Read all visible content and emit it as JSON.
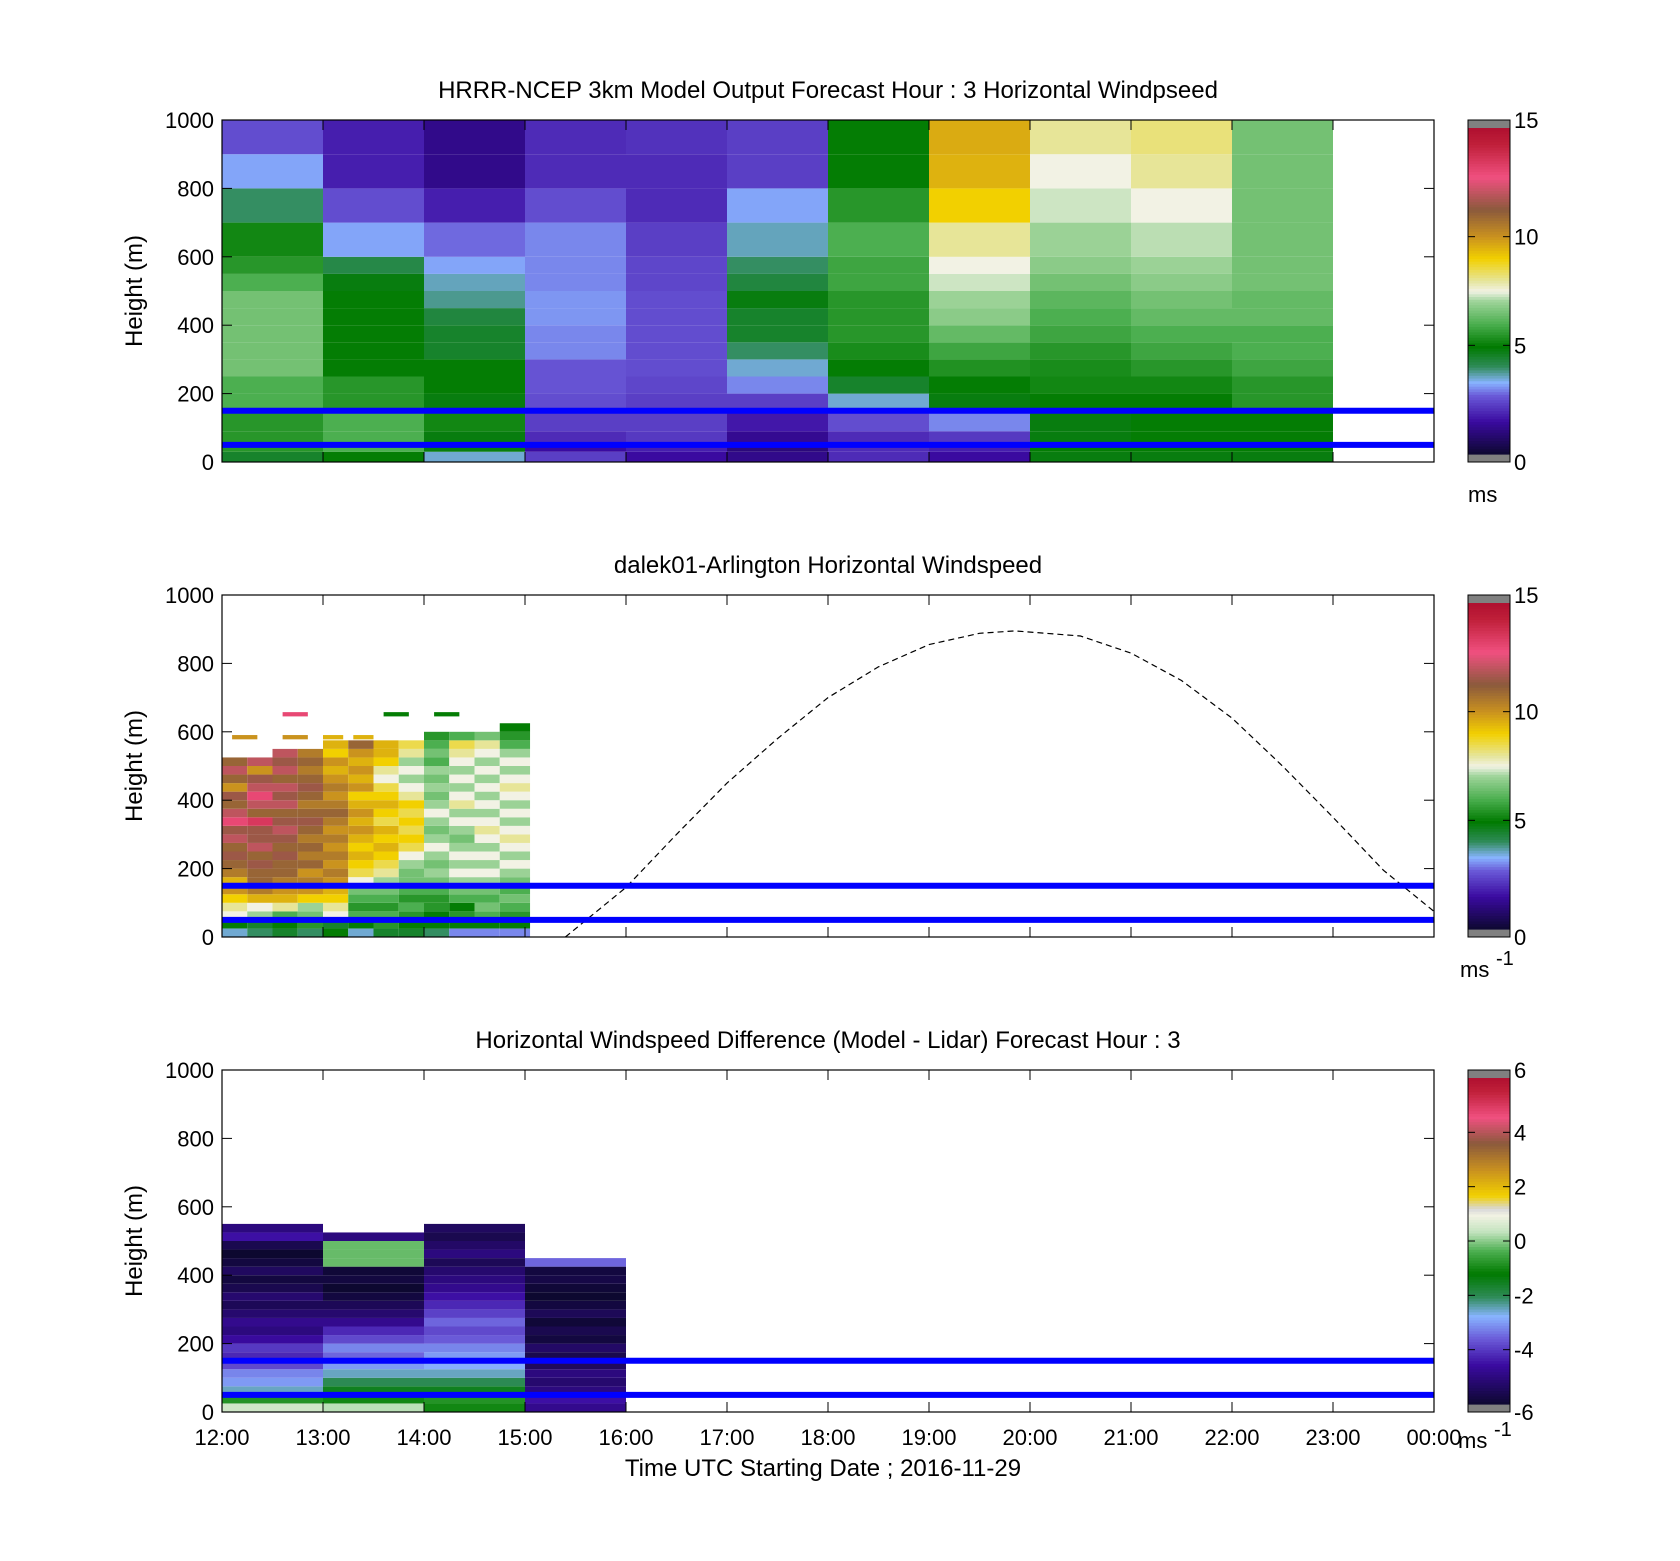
{
  "colors": {
    "hub_line": "#0000ff",
    "envelope": "#000000",
    "speed_stops": [
      [
        0.0,
        "#0d0830"
      ],
      [
        0.1,
        "#3a0aa0"
      ],
      [
        0.18,
        "#6a5ad8"
      ],
      [
        0.22,
        "#88b4ff"
      ],
      [
        0.27,
        "#2e8b57"
      ],
      [
        0.33,
        "#007a00"
      ],
      [
        0.4,
        "#4caf50"
      ],
      [
        0.47,
        "#9fd49a"
      ],
      [
        0.5,
        "#f2f2e4"
      ],
      [
        0.53,
        "#e6e6a0"
      ],
      [
        0.6,
        "#f2d000"
      ],
      [
        0.67,
        "#c89020"
      ],
      [
        0.75,
        "#8b5a3c"
      ],
      [
        0.85,
        "#f05080"
      ],
      [
        0.95,
        "#c0203a"
      ],
      [
        1.0,
        "#b01030"
      ]
    ],
    "diff_stops": [
      [
        0.0,
        "#0d0830"
      ],
      [
        0.12,
        "#3a0aa0"
      ],
      [
        0.2,
        "#6a5ad8"
      ],
      [
        0.27,
        "#88b4ff"
      ],
      [
        0.33,
        "#2e8b57"
      ],
      [
        0.4,
        "#007a00"
      ],
      [
        0.47,
        "#4caf50"
      ],
      [
        0.53,
        "#c4e4c0"
      ],
      [
        0.58,
        "#f2f2e4"
      ],
      [
        0.6,
        "#d8d8d8"
      ],
      [
        0.64,
        "#f2d000"
      ],
      [
        0.72,
        "#c89020"
      ],
      [
        0.8,
        "#8b5a3c"
      ],
      [
        0.88,
        "#f05080"
      ],
      [
        0.96,
        "#c0203a"
      ],
      [
        1.0,
        "#b01030"
      ]
    ]
  },
  "chart_data": [
    {
      "type": "heatmap",
      "title": "HRRR-NCEP 3km Model Output   Forecast Hour : 3 Horizontal Windpseed",
      "xlabel": "",
      "ylabel": "Height (m)",
      "ylim": [
        0,
        1000
      ],
      "yticks": [
        "0",
        "200",
        "400",
        "600",
        "800",
        "1000"
      ],
      "xlim": [
        12,
        24
      ],
      "colorbar": {
        "ticks": [
          "0",
          "5",
          "10",
          "15"
        ],
        "range": [
          0,
          15
        ],
        "unit": "ms",
        "unit_sup": ""
      },
      "hub_heights": [
        150,
        50
      ],
      "heights": [
        0,
        30,
        50,
        90,
        150,
        200,
        250,
        300,
        350,
        400,
        450,
        500,
        550,
        600,
        700,
        800,
        900,
        1000
      ],
      "columns": [
        {
          "t0": 12,
          "t1": 13,
          "values": [
            4.5,
            5.5,
            5.5,
            5.5,
            6.0,
            6.0,
            6.5,
            6.5,
            6.5,
            6.5,
            6.5,
            6.0,
            5.5,
            5.2,
            4.0,
            3.2,
            2.5
          ]
        },
        {
          "t0": 13,
          "t1": 14,
          "values": [
            5.0,
            6.0,
            6.0,
            6.0,
            5.5,
            5.5,
            5.0,
            5.0,
            5.0,
            5.0,
            5.0,
            4.8,
            4.2,
            3.2,
            2.5,
            1.8,
            1.8
          ]
        },
        {
          "t0": 14,
          "t1": 15,
          "values": [
            3.5,
            4.8,
            4.8,
            5.2,
            4.8,
            5.0,
            5.0,
            4.5,
            4.5,
            4.3,
            3.8,
            3.6,
            3.2,
            2.8,
            1.8,
            1.2,
            1.2
          ]
        },
        {
          "t0": 15,
          "t1": 16,
          "values": [
            2.3,
            1.5,
            2.0,
            2.3,
            2.5,
            2.6,
            2.6,
            3.0,
            3.0,
            3.1,
            3.1,
            3.0,
            3.0,
            3.0,
            2.5,
            2.0,
            2.0
          ]
        },
        {
          "t0": 16,
          "t1": 17,
          "values": [
            1.5,
            1.8,
            2.2,
            2.3,
            2.3,
            2.4,
            2.5,
            2.5,
            2.5,
            2.5,
            2.5,
            2.4,
            2.4,
            2.3,
            2.0,
            2.0,
            2.1
          ]
        },
        {
          "t0": 17,
          "t1": 18,
          "values": [
            1.2,
            1.0,
            1.3,
            1.7,
            2.3,
            3.0,
            3.5,
            4.0,
            4.5,
            4.5,
            4.8,
            4.3,
            4.0,
            3.6,
            3.2,
            2.3,
            2.3
          ]
        },
        {
          "t0": 18,
          "t1": 19,
          "values": [
            2.0,
            2.0,
            2.0,
            2.5,
            3.5,
            4.5,
            5.0,
            5.3,
            5.5,
            5.5,
            5.5,
            5.8,
            5.8,
            6.0,
            5.5,
            5.0,
            5.0
          ]
        },
        {
          "t0": 19,
          "t1": 20,
          "values": [
            1.5,
            1.8,
            2.2,
            3.0,
            4.8,
            5.0,
            5.4,
            5.8,
            6.3,
            6.8,
            7.0,
            7.3,
            7.5,
            8.0,
            9.0,
            9.5,
            9.6
          ]
        },
        {
          "t0": 20,
          "t1": 21,
          "values": [
            4.8,
            5.0,
            4.8,
            4.8,
            5.0,
            5.2,
            5.3,
            5.5,
            5.8,
            6.0,
            6.2,
            6.5,
            6.8,
            7.0,
            7.3,
            7.5,
            8.0
          ]
        },
        {
          "t0": 21,
          "t1": 22,
          "values": [
            4.8,
            5.0,
            5.0,
            5.0,
            5.0,
            5.2,
            5.5,
            5.8,
            6.0,
            6.3,
            6.5,
            6.8,
            7.0,
            7.2,
            7.5,
            8.0,
            8.2
          ]
        },
        {
          "t0": 22,
          "t1": 23,
          "values": [
            4.8,
            5.0,
            5.0,
            5.0,
            5.5,
            5.5,
            5.8,
            6.0,
            6.0,
            6.3,
            6.3,
            6.5,
            6.5,
            6.5,
            6.5,
            6.5,
            6.5
          ]
        }
      ]
    },
    {
      "type": "heatmap",
      "title": "dalek01-Arlington  Horizontal Windspeed",
      "xlabel": "",
      "ylabel": "Height (m)",
      "ylim": [
        0,
        1000
      ],
      "yticks": [
        "0",
        "200",
        "400",
        "600",
        "800",
        "1000"
      ],
      "xlim": [
        12,
        24
      ],
      "colorbar": {
        "ticks": [
          "0",
          "5",
          "10",
          "15"
        ],
        "range": [
          0,
          15
        ],
        "unit": "ms",
        "unit_sup": "-1"
      },
      "hub_heights": [
        150,
        50
      ],
      "envelope": {
        "t": [
          15.4,
          16,
          16.5,
          17,
          17.5,
          18,
          18.5,
          19,
          19.5,
          19.85,
          20.5,
          21,
          21.5,
          22,
          22.5,
          23,
          23.5,
          24
        ],
        "h": [
          0,
          145,
          300,
          450,
          580,
          700,
          790,
          855,
          888,
          895,
          880,
          830,
          750,
          640,
          500,
          350,
          195,
          75
        ]
      },
      "bin_height": 25,
      "columns": [
        {
          "t0": 12.0,
          "t1": 12.25,
          "values": [
            3.5,
            5.0,
            7.5,
            8.0,
            9.0,
            10.0,
            9.5,
            10.5,
            11.0,
            11.5,
            11.0,
            12.0,
            11.5,
            13.0,
            12.0,
            11.0,
            11.5,
            10.0,
            11.0,
            12.0,
            11.0
          ]
        },
        {
          "t0": 12.25,
          "t1": 12.5,
          "values": [
            4.0,
            4.5,
            7.0,
            7.5,
            9.5,
            10.5,
            11.0,
            11.0,
            11.5,
            11.0,
            12.0,
            11.5,
            11.5,
            13.5,
            11.0,
            12.0,
            13.0,
            12.0,
            11.5,
            10.0,
            12.0
          ]
        },
        {
          "t0": 12.5,
          "t1": 12.75,
          "values": [
            4.5,
            5.0,
            6.0,
            8.0,
            9.5,
            10.0,
            10.5,
            11.0,
            11.0,
            11.5,
            11.0,
            11.5,
            12.0,
            11.5,
            11.0,
            12.0,
            11.5,
            12.0,
            11.0,
            12.0,
            11.5,
            12.0
          ]
        },
        {
          "t0": 12.75,
          "t1": 13.0,
          "values": [
            4.0,
            5.5,
            6.5,
            7.0,
            9.0,
            10.0,
            10.5,
            10.0,
            11.0,
            10.5,
            11.0,
            10.5,
            11.0,
            11.5,
            11.0,
            10.5,
            11.0,
            11.5,
            11.0,
            10.5,
            11.0,
            10.5
          ]
        },
        {
          "t0": 13.0,
          "t1": 13.25,
          "values": [
            5.0,
            4.5,
            7.5,
            8.0,
            9.0,
            9.5,
            10.0,
            10.5,
            10.0,
            10.5,
            10.0,
            10.5,
            10.0,
            10.5,
            11.0,
            10.5,
            10.0,
            10.5,
            10.0,
            9.5,
            10.0,
            9.0,
            9.5
          ]
        },
        {
          "t0": 13.25,
          "t1": 13.5,
          "values": [
            3.5,
            5.0,
            6.0,
            5.5,
            6.0,
            6.5,
            7.5,
            8.5,
            9.0,
            9.5,
            9.0,
            9.5,
            10.0,
            9.5,
            10.0,
            9.5,
            9.0,
            10.0,
            9.5,
            10.0,
            9.5,
            10.0,
            11.0
          ]
        },
        {
          "t0": 13.5,
          "t1": 13.75,
          "values": [
            4.5,
            5.5,
            6.0,
            5.5,
            6.0,
            6.5,
            7.0,
            8.0,
            8.5,
            9.0,
            9.5,
            9.0,
            9.5,
            8.5,
            9.0,
            9.5,
            9.0,
            8.5,
            7.5,
            8.0,
            9.0,
            9.5,
            9.5
          ]
        },
        {
          "t0": 13.75,
          "t1": 14.0,
          "values": [
            4.5,
            5.0,
            5.5,
            6.0,
            5.5,
            6.0,
            6.5,
            6.5,
            7.0,
            7.5,
            8.5,
            9.0,
            8.5,
            9.0,
            8.5,
            9.0,
            8.0,
            7.5,
            7.0,
            7.5,
            7.0,
            8.0,
            8.5
          ]
        },
        {
          "t0": 14.0,
          "t1": 14.25,
          "values": [
            4.0,
            5.0,
            5.0,
            5.5,
            5.5,
            6.0,
            6.5,
            7.0,
            6.5,
            7.0,
            7.5,
            7.0,
            6.5,
            7.0,
            7.5,
            7.0,
            6.5,
            7.0,
            6.5,
            7.0,
            6.0,
            6.5,
            6.0,
            5.5
          ]
        },
        {
          "t0": 14.25,
          "t1": 14.5,
          "values": [
            3.0,
            5.0,
            5.5,
            5.0,
            6.0,
            6.5,
            7.0,
            7.5,
            7.0,
            7.5,
            7.0,
            6.5,
            7.0,
            7.5,
            7.0,
            8.0,
            7.5,
            7.0,
            7.5,
            7.0,
            7.5,
            8.0,
            8.5,
            6.0
          ]
        },
        {
          "t0": 14.5,
          "t1": 14.75,
          "values": [
            3.0,
            5.0,
            6.0,
            6.5,
            6.0,
            6.5,
            7.0,
            7.5,
            7.0,
            7.5,
            7.0,
            7.5,
            8.0,
            7.5,
            7.0,
            7.5,
            7.0,
            7.5,
            7.0,
            7.5,
            7.0,
            7.5,
            8.0,
            6.5
          ]
        },
        {
          "t0": 14.75,
          "t1": 15.05,
          "values": [
            3.0,
            5.0,
            5.5,
            6.0,
            6.5,
            6.0,
            6.5,
            7.0,
            7.5,
            7.0,
            7.5,
            8.0,
            7.5,
            7.0,
            7.5,
            7.0,
            7.5,
            8.0,
            7.5,
            7.0,
            7.5,
            7.0,
            6.0,
            5.5,
            5.0
          ]
        }
      ],
      "specks": [
        {
          "t0": 12.6,
          "t1": 12.85,
          "h": 645,
          "v": 13.0
        },
        {
          "t0": 13.6,
          "t1": 13.85,
          "h": 645,
          "v": 5.0
        },
        {
          "t0": 14.1,
          "t1": 14.35,
          "h": 645,
          "v": 5.0
        },
        {
          "t0": 12.1,
          "t1": 12.35,
          "h": 578,
          "v": 10.0
        },
        {
          "t0": 12.6,
          "t1": 12.85,
          "h": 578,
          "v": 10.0
        },
        {
          "t0": 13.0,
          "t1": 13.2,
          "h": 578,
          "v": 9.5
        },
        {
          "t0": 13.3,
          "t1": 13.5,
          "h": 578,
          "v": 9.5
        }
      ]
    },
    {
      "type": "heatmap",
      "title": "Horizontal Windspeed Difference (Model - Lidar) Forecast Hour : 3",
      "xlabel": "Time UTC  Starting Date ; 2016-11-29",
      "ylabel": "Height (m)",
      "ylim": [
        0,
        1000
      ],
      "yticks": [
        "0",
        "200",
        "400",
        "600",
        "800",
        "1000"
      ],
      "xlim": [
        12,
        24
      ],
      "xticks": [
        "12:00",
        "13:00",
        "14:00",
        "15:00",
        "16:00",
        "17:00",
        "18:00",
        "19:00",
        "20:00",
        "21:00",
        "22:00",
        "23:00",
        "00:00"
      ],
      "colorbar": {
        "ticks": [
          "-6",
          "-4",
          "-2",
          "0",
          "2",
          "4",
          "6"
        ],
        "range": [
          -6,
          6
        ],
        "unit": "ms",
        "unit_sup": "-1"
      },
      "hub_heights": [
        150,
        50
      ],
      "bin_height": 25,
      "columns": [
        {
          "t0": 12,
          "t1": 13,
          "values": [
            0.5,
            -0.8,
            -2.5,
            -3.0,
            -3.2,
            -3.8,
            -4.2,
            -4.0,
            -4.6,
            -5.0,
            -4.8,
            -5.2,
            -5.5,
            -5.2,
            -5.6,
            -5.8,
            -5.4,
            -5.8,
            -6.0,
            -5.6,
            -4.5,
            -5.0
          ]
        },
        {
          "t0": 13,
          "t1": 14,
          "values": [
            0.3,
            -1.0,
            -1.5,
            -2.0,
            -2.5,
            -3.0,
            -3.5,
            -3.2,
            -3.8,
            -4.2,
            -4.8,
            -5.2,
            -5.5,
            -5.8,
            -6.0,
            -5.8,
            -5.9,
            -0.2,
            -0.2,
            -0.2,
            -5.0
          ]
        },
        {
          "t0": 14,
          "t1": 15,
          "values": [
            -1.0,
            -0.8,
            -1.5,
            -2.0,
            -2.5,
            -2.8,
            -3.0,
            -3.2,
            -3.6,
            -3.8,
            -3.5,
            -3.9,
            -4.2,
            -4.5,
            -4.8,
            -5.0,
            -5.2,
            -5.5,
            -5.0,
            -5.3,
            -5.6,
            -5.4
          ]
        },
        {
          "t0": 15,
          "t1": 16,
          "values": [
            -4.8,
            -4.5,
            -5.0,
            -5.2,
            -5.0,
            -5.4,
            -5.6,
            -5.3,
            -5.8,
            -5.6,
            -5.9,
            -5.5,
            -5.8,
            -6.0,
            -5.9,
            -5.7,
            -5.8,
            -3.5
          ]
        }
      ]
    }
  ]
}
